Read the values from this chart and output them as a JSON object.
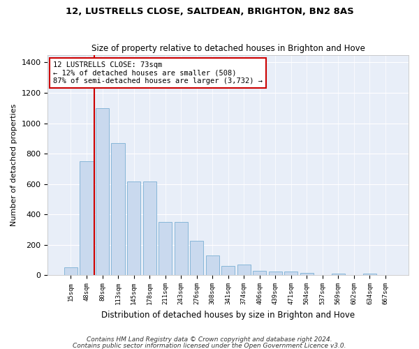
{
  "title1": "12, LUSTRELLS CLOSE, SALTDEAN, BRIGHTON, BN2 8AS",
  "title2": "Size of property relative to detached houses in Brighton and Hove",
  "xlabel": "Distribution of detached houses by size in Brighton and Hove",
  "ylabel": "Number of detached properties",
  "footnote1": "Contains HM Land Registry data © Crown copyright and database right 2024.",
  "footnote2": "Contains public sector information licensed under the Open Government Licence v3.0.",
  "annotation_line1": "12 LUSTRELLS CLOSE: 73sqm",
  "annotation_line2": "← 12% of detached houses are smaller (508)",
  "annotation_line3": "87% of semi-detached houses are larger (3,732) →",
  "bar_color": "#c9d9ee",
  "bar_edge_color": "#7aafd4",
  "ref_line_color": "#cc0000",
  "annotation_box_edge_color": "#cc0000",
  "fig_bg_color": "#ffffff",
  "plot_bg_color": "#e8eef8",
  "grid_color": "#ffffff",
  "categories": [
    "15sqm",
    "48sqm",
    "80sqm",
    "113sqm",
    "145sqm",
    "178sqm",
    "211sqm",
    "243sqm",
    "276sqm",
    "308sqm",
    "341sqm",
    "374sqm",
    "406sqm",
    "439sqm",
    "471sqm",
    "504sqm",
    "537sqm",
    "569sqm",
    "602sqm",
    "634sqm",
    "667sqm"
  ],
  "values": [
    50,
    750,
    1100,
    870,
    615,
    615,
    350,
    348,
    225,
    130,
    62,
    70,
    28,
    25,
    22,
    15,
    0,
    10,
    0,
    10,
    0
  ],
  "ylim": [
    0,
    1450
  ],
  "yticks": [
    0,
    200,
    400,
    600,
    800,
    1000,
    1200,
    1400
  ],
  "ref_line_x": 1.5
}
